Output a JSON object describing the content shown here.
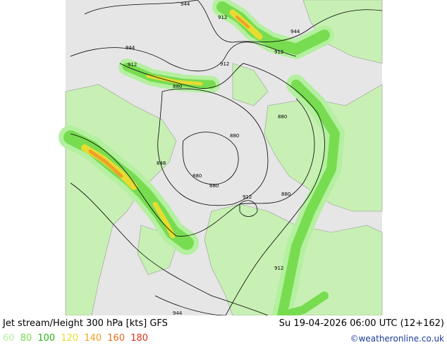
{
  "title": "Jet stream/Height 300 hPa [kts] GFS",
  "datetime": "Su 19-04-2026 06:00 UTC (12+162)",
  "legend": [
    {
      "label": "60",
      "color": "#b4f0a0"
    },
    {
      "label": "80",
      "color": "#78dc50"
    },
    {
      "label": "100",
      "color": "#28b414"
    },
    {
      "label": "120",
      "color": "#e6dc32"
    },
    {
      "label": "140",
      "color": "#f0a028"
    },
    {
      "label": "160",
      "color": "#e66e1e"
    },
    {
      "label": "180",
      "color": "#dc3214"
    }
  ],
  "credit": "©weatheronline.co.uk",
  "contour_labels": [
    "944",
    "912",
    "944",
    "912",
    "944",
    "912",
    "912",
    "880",
    "880",
    "880",
    "848",
    "880",
    "880",
    "912",
    "880",
    "912",
    "944"
  ]
}
